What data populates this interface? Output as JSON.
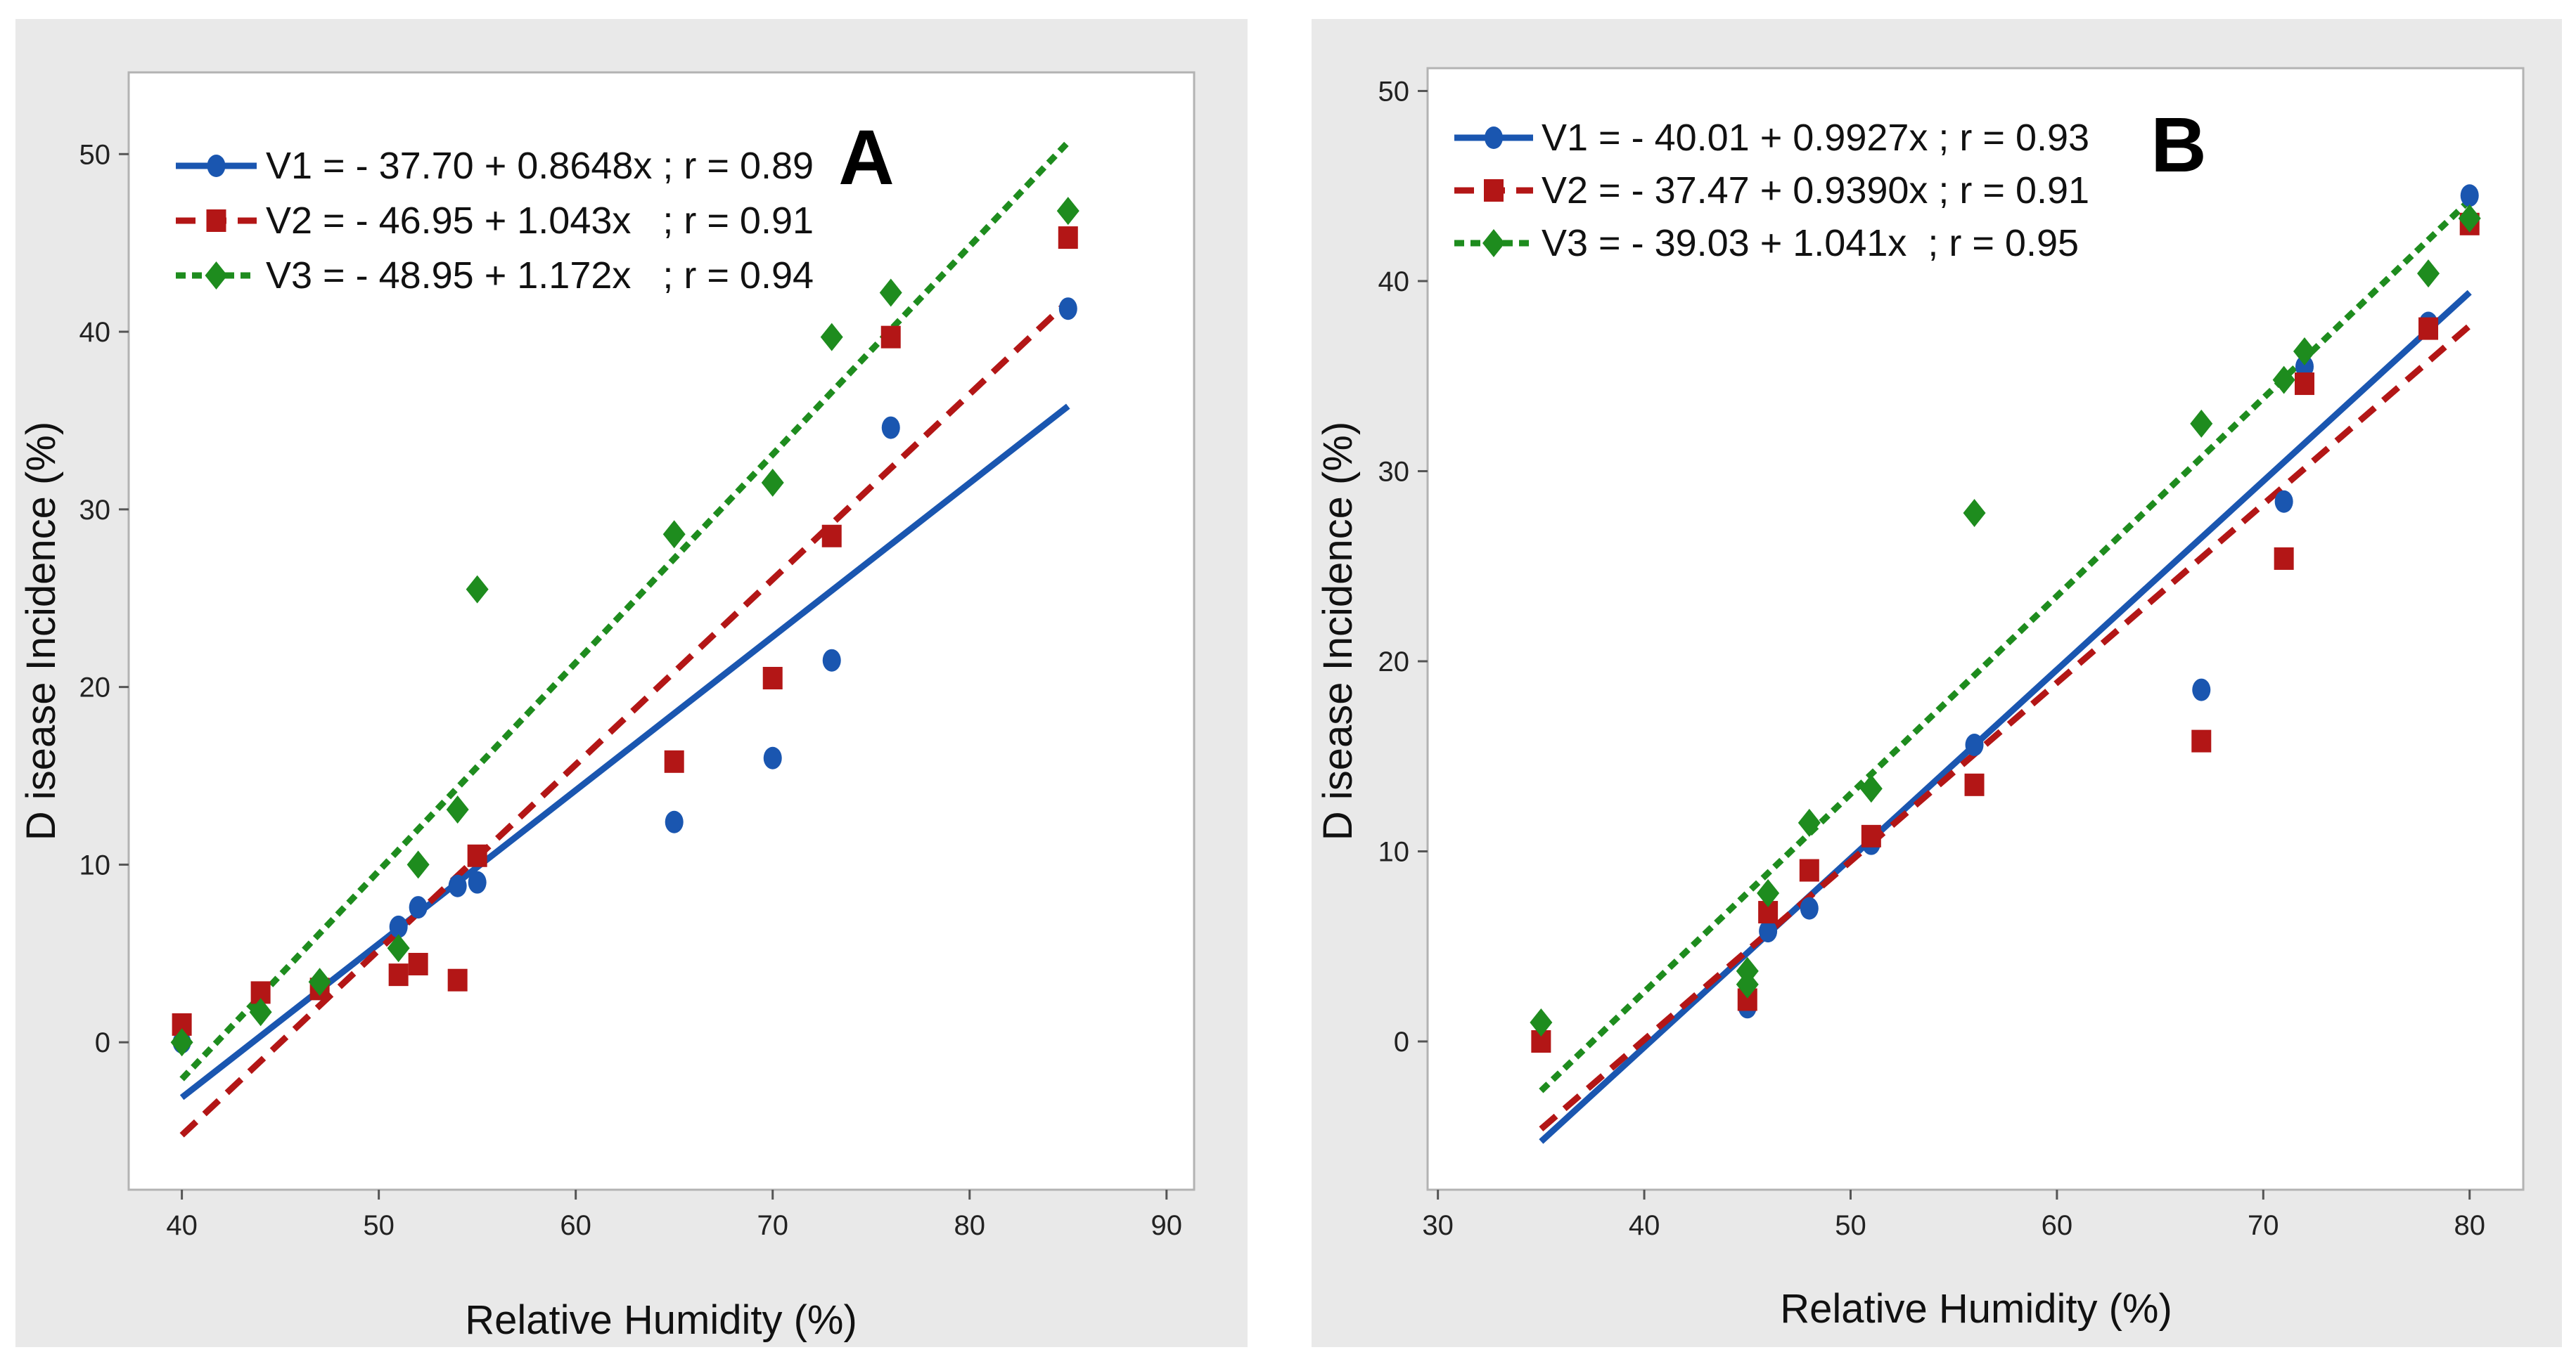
{
  "chart_data": [
    {
      "type": "scatter",
      "panel_label": "A",
      "xlabel": "Relative Humidity (%)",
      "ylabel": "D isease Incidence (%)",
      "xlim": [
        37.3,
        91.4
      ],
      "ylim": [
        -8.3,
        54.6
      ],
      "xticks": [
        40,
        50,
        60,
        70,
        80,
        90
      ],
      "yticks": [
        0,
        10,
        20,
        30,
        40,
        50
      ],
      "legend_position": "top-left",
      "series": [
        {
          "name": "V1",
          "legend_label": "V1 = - 37.70 + 0.8648x ; r = 0.89",
          "color": "#1a56b0",
          "marker": "circle",
          "line_style": "solid",
          "intercept": -37.7,
          "slope": 0.8648,
          "x": [
            40,
            47,
            51,
            52,
            54,
            55,
            65,
            70,
            73,
            76,
            85
          ],
          "y": [
            0,
            3,
            6.5,
            7.6,
            8.8,
            9,
            12.4,
            16,
            21.5,
            34.6,
            41.3
          ]
        },
        {
          "name": "V2",
          "legend_label": "V2 = - 46.95 + 1.043x   ; r = 0.91",
          "color": "#b31616",
          "marker": "square",
          "line_style": "dashed",
          "intercept": -46.95,
          "slope": 1.043,
          "x": [
            40,
            44,
            47,
            51,
            52,
            54,
            55,
            65,
            70,
            73,
            76,
            85
          ],
          "y": [
            1,
            2.8,
            3,
            3.8,
            4.4,
            3.5,
            10.5,
            15.8,
            20.5,
            28.5,
            39.7,
            45.3
          ]
        },
        {
          "name": "V3",
          "legend_label": "V3 = - 48.95 + 1.172x   ; r = 0.94",
          "color": "#1e8c1e",
          "marker": "diamond",
          "line_style": "dotted",
          "intercept": -48.95,
          "slope": 1.172,
          "x": [
            40,
            44,
            47,
            51,
            52,
            54,
            55,
            65,
            70,
            73,
            76,
            85
          ],
          "y": [
            0,
            1.7,
            3.4,
            5.3,
            10,
            13.1,
            25.5,
            28.6,
            31.5,
            39.7,
            42.2,
            46.8
          ]
        }
      ]
    },
    {
      "type": "scatter",
      "panel_label": "B",
      "xlabel": "Relative Humidity (%)",
      "ylabel": "D isease Incidence (%)",
      "xlim": [
        29.5,
        82.6
      ],
      "ylim": [
        -7.8,
        51.2
      ],
      "xticks": [
        30,
        40,
        50,
        60,
        70,
        80
      ],
      "yticks": [
        0,
        10,
        20,
        30,
        40,
        50
      ],
      "legend_position": "top-left",
      "series": [
        {
          "name": "V1",
          "legend_label": "V1 = - 40.01 + 0.9927x ; r = 0.93",
          "color": "#1a56b0",
          "marker": "circle",
          "line_style": "solid",
          "intercept": -40.01,
          "slope": 0.9927,
          "x": [
            35,
            45,
            45,
            46,
            48,
            51,
            56,
            67,
            71,
            72,
            78,
            80
          ],
          "y": [
            0,
            1.8,
            2.5,
            5.8,
            7,
            10.4,
            15.6,
            18.5,
            28.4,
            35.5,
            37.8,
            44.5
          ]
        },
        {
          "name": "V2",
          "legend_label": "V2 = - 37.47 + 0.9390x ; r = 0.91",
          "color": "#b31616",
          "marker": "square",
          "line_style": "dashed",
          "intercept": -37.47,
          "slope": 0.939,
          "x": [
            35,
            45,
            46,
            48,
            51,
            56,
            67,
            71,
            72,
            78,
            80
          ],
          "y": [
            0,
            2.2,
            6.8,
            9,
            10.8,
            13.5,
            15.8,
            25.4,
            34.6,
            37.5,
            43
          ]
        },
        {
          "name": "V3",
          "legend_label": "V3 = - 39.03 + 1.041x  ; r = 0.95",
          "color": "#1e8c1e",
          "marker": "diamond",
          "line_style": "dotted",
          "intercept": -39.03,
          "slope": 1.041,
          "x": [
            35,
            45,
            45,
            46,
            48,
            51,
            56,
            67,
            71,
            72,
            78,
            80
          ],
          "y": [
            1,
            3,
            3.7,
            7.8,
            11.5,
            13.3,
            27.8,
            32.5,
            34.8,
            36.3,
            40.4,
            43.3
          ]
        }
      ]
    }
  ]
}
